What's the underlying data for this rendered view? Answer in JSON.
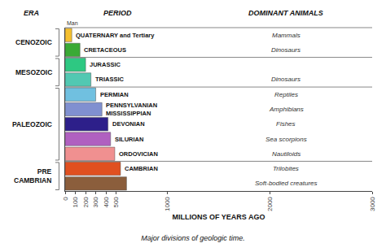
{
  "chart_data": {
    "type": "bar",
    "orientation": "horizontal",
    "title": "Major divisions of geologic time.",
    "x_label": "MILLIONS OF YEARS AGO",
    "column_headers": [
      "ERA",
      "PERIOD",
      "DOMINANT ANIMALS"
    ],
    "categories": [
      "QUATERNARY and Tertiary",
      "CRETACEOUS",
      "JURASSIC",
      "TRIASSIC",
      "PERMIAN",
      "PENNSYLVANIAN\nMISSISSIPPIAN",
      "DEVONIAN",
      "SILURIAN",
      "ORDOVICIAN",
      "CAMBRIAN",
      null
    ],
    "values": [
      65,
      145,
      200,
      252,
      299,
      360,
      419,
      444,
      485,
      541,
      600
    ],
    "colors": [
      "#f5c030",
      "#3aaa35",
      "#2ec882",
      "#52c8b2",
      "#70c0e0",
      "#8090d0",
      "#2d1f8a",
      "#b060c0",
      "#f09090",
      "#e05020",
      "#8B5E3C"
    ],
    "animals": [
      "Mammals",
      "Dinosaurs",
      null,
      "Dinosaurs",
      "Reptiles",
      "Amphibians",
      "Fishes",
      "Sea scorpions",
      "Nautiloids",
      "Trilobites",
      "Soft-bodied creatures"
    ],
    "eras": [
      "CENOZOIC",
      "CENOZOIC",
      "MESOZOIC",
      "MESOZOIC",
      "PALEOZOIC",
      "PALEOZOIC",
      "PALEOZOIC",
      "PALEOZOIC",
      "PALEOZOIC",
      "PRE\nCAMBRIAN",
      "PRE\nCAMBRIAN"
    ],
    "annotations": [
      "Man"
    ],
    "xlim": [
      0,
      3000
    ],
    "xticks": [
      0,
      100,
      200,
      300,
      400,
      500,
      1000,
      2000,
      3000
    ],
    "grid": false,
    "tick_labels": "x"
  }
}
